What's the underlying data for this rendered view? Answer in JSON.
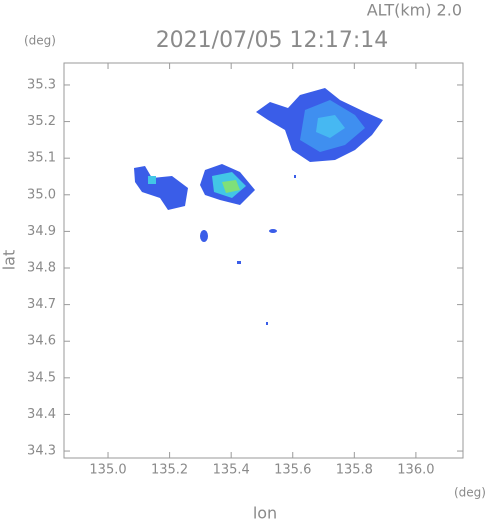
{
  "chart_data": {
    "type": "radar-map",
    "title": "2021/07/05 12:17:14",
    "subtitle": "ALT(km) 2.0",
    "x_label": "lon",
    "y_label": "lat",
    "x_unit": "(deg)",
    "y_unit": "(deg)",
    "xlim": [
      134.857,
      136.153
    ],
    "ylim": [
      34.281,
      35.36
    ],
    "xticks": [
      {
        "value": 135,
        "label": "135.0"
      },
      135.2,
      135.4,
      135.6,
      135.8,
      {
        "value": 136,
        "label": "136.0"
      }
    ],
    "yticks": [
      34.3,
      34.4,
      34.5,
      34.6,
      34.7,
      34.8,
      34.9,
      {
        "value": 35,
        "label": "35.0"
      },
      35.1,
      35.2,
      35.3
    ]
  }
}
